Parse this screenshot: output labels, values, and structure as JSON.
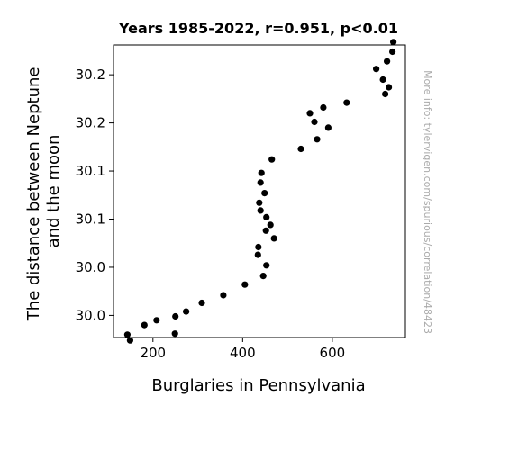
{
  "chart_data": {
    "type": "scatter",
    "title": "Years 1985-2022, r=0.951, p<0.01",
    "xlabel": "Burglaries in Pennsylvania",
    "ylabel_lines": [
      "The distance between Neptune",
      "and the moon"
    ],
    "watermark": "More info: tylervigen.com/spurious/correlation/48423",
    "xlim": [
      112,
      763
    ],
    "ylim": [
      29.977,
      30.281
    ],
    "x_ticks": [
      {
        "value": 200,
        "label": "200"
      },
      {
        "value": 400,
        "label": "400"
      },
      {
        "value": 600,
        "label": "600"
      }
    ],
    "y_ticks": [
      {
        "value": 30.0,
        "label": "30.0"
      },
      {
        "value": 30.05,
        "label": "30.0"
      },
      {
        "value": 30.1,
        "label": "30.1"
      },
      {
        "value": 30.15,
        "label": "30.1"
      },
      {
        "value": 30.2,
        "label": "30.2"
      },
      {
        "value": 30.25,
        "label": "30.2"
      }
    ],
    "marker_color": "#000000",
    "grid": false,
    "points": [
      {
        "x": 143,
        "y": 29.98
      },
      {
        "x": 149,
        "y": 29.974
      },
      {
        "x": 181,
        "y": 29.99
      },
      {
        "x": 208,
        "y": 29.995
      },
      {
        "x": 249,
        "y": 29.981
      },
      {
        "x": 250,
        "y": 29.999
      },
      {
        "x": 274,
        "y": 30.004
      },
      {
        "x": 309,
        "y": 30.013
      },
      {
        "x": 357,
        "y": 30.021
      },
      {
        "x": 405,
        "y": 30.032
      },
      {
        "x": 434,
        "y": 30.063
      },
      {
        "x": 435,
        "y": 30.071
      },
      {
        "x": 446,
        "y": 30.041
      },
      {
        "x": 453,
        "y": 30.052
      },
      {
        "x": 452,
        "y": 30.088
      },
      {
        "x": 453,
        "y": 30.102
      },
      {
        "x": 462,
        "y": 30.094
      },
      {
        "x": 437,
        "y": 30.117
      },
      {
        "x": 440,
        "y": 30.109
      },
      {
        "x": 470,
        "y": 30.08
      },
      {
        "x": 449,
        "y": 30.127
      },
      {
        "x": 440,
        "y": 30.138
      },
      {
        "x": 442,
        "y": 30.148
      },
      {
        "x": 465,
        "y": 30.162
      },
      {
        "x": 530,
        "y": 30.173
      },
      {
        "x": 566,
        "y": 30.183
      },
      {
        "x": 591,
        "y": 30.195
      },
      {
        "x": 560,
        "y": 30.201
      },
      {
        "x": 550,
        "y": 30.21
      },
      {
        "x": 580,
        "y": 30.216
      },
      {
        "x": 632,
        "y": 30.221
      },
      {
        "x": 698,
        "y": 30.256
      },
      {
        "x": 713,
        "y": 30.245
      },
      {
        "x": 726,
        "y": 30.237
      },
      {
        "x": 718,
        "y": 30.23
      },
      {
        "x": 722,
        "y": 30.264
      },
      {
        "x": 734,
        "y": 30.274
      },
      {
        "x": 736,
        "y": 30.284
      }
    ]
  }
}
